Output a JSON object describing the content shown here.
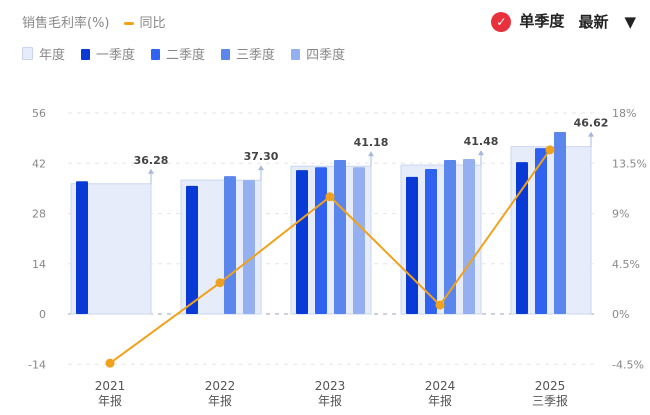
{
  "header": {
    "metric": "销售毛利率(%)",
    "yoy_label": "同比",
    "single_quarter": "单季度",
    "latest": "最新"
  },
  "colors": {
    "annual": "#e6ecfa",
    "q1": "#0a3ad6",
    "q2": "#2f62f0",
    "q3": "#5b86ec",
    "q4": "#94b0f0",
    "yoy": "#f0a21c",
    "check": "#e8313c"
  },
  "chart_data": {
    "type": "bar",
    "categories": [
      [
        "2021",
        "年报"
      ],
      [
        "2022",
        "年报"
      ],
      [
        "2023",
        "年报"
      ],
      [
        "2024",
        "年报"
      ],
      [
        "2025",
        "三季报"
      ]
    ],
    "legend": [
      "年度",
      "一季度",
      "二季度",
      "三季度",
      "四季度"
    ],
    "annual": [
      36.28,
      37.3,
      41.18,
      41.48,
      46.62
    ],
    "series": [
      {
        "name": "一季度",
        "values": [
          37.0,
          35.7,
          40.1,
          38.2,
          42.3
        ]
      },
      {
        "name": "二季度",
        "values": [
          null,
          null,
          40.9,
          40.4,
          46.2
        ]
      },
      {
        "name": "三季度",
        "values": [
          null,
          38.4,
          42.9,
          42.9,
          50.7
        ]
      },
      {
        "name": "四季度",
        "values": [
          null,
          37.3,
          40.9,
          43.2,
          null
        ]
      }
    ],
    "yoy": {
      "name": "同比",
      "values": [
        -4.4,
        2.8,
        10.5,
        0.8,
        14.7
      ]
    },
    "y_left": {
      "ticks": [
        56,
        42,
        28,
        14,
        0,
        -14
      ],
      "range": [
        -14,
        56
      ]
    },
    "y_right": {
      "ticks": [
        "18%",
        "13.5%",
        "9%",
        "4.5%",
        "0%",
        "-4.5%"
      ],
      "range": [
        -4.5,
        18
      ]
    },
    "grid": true
  }
}
